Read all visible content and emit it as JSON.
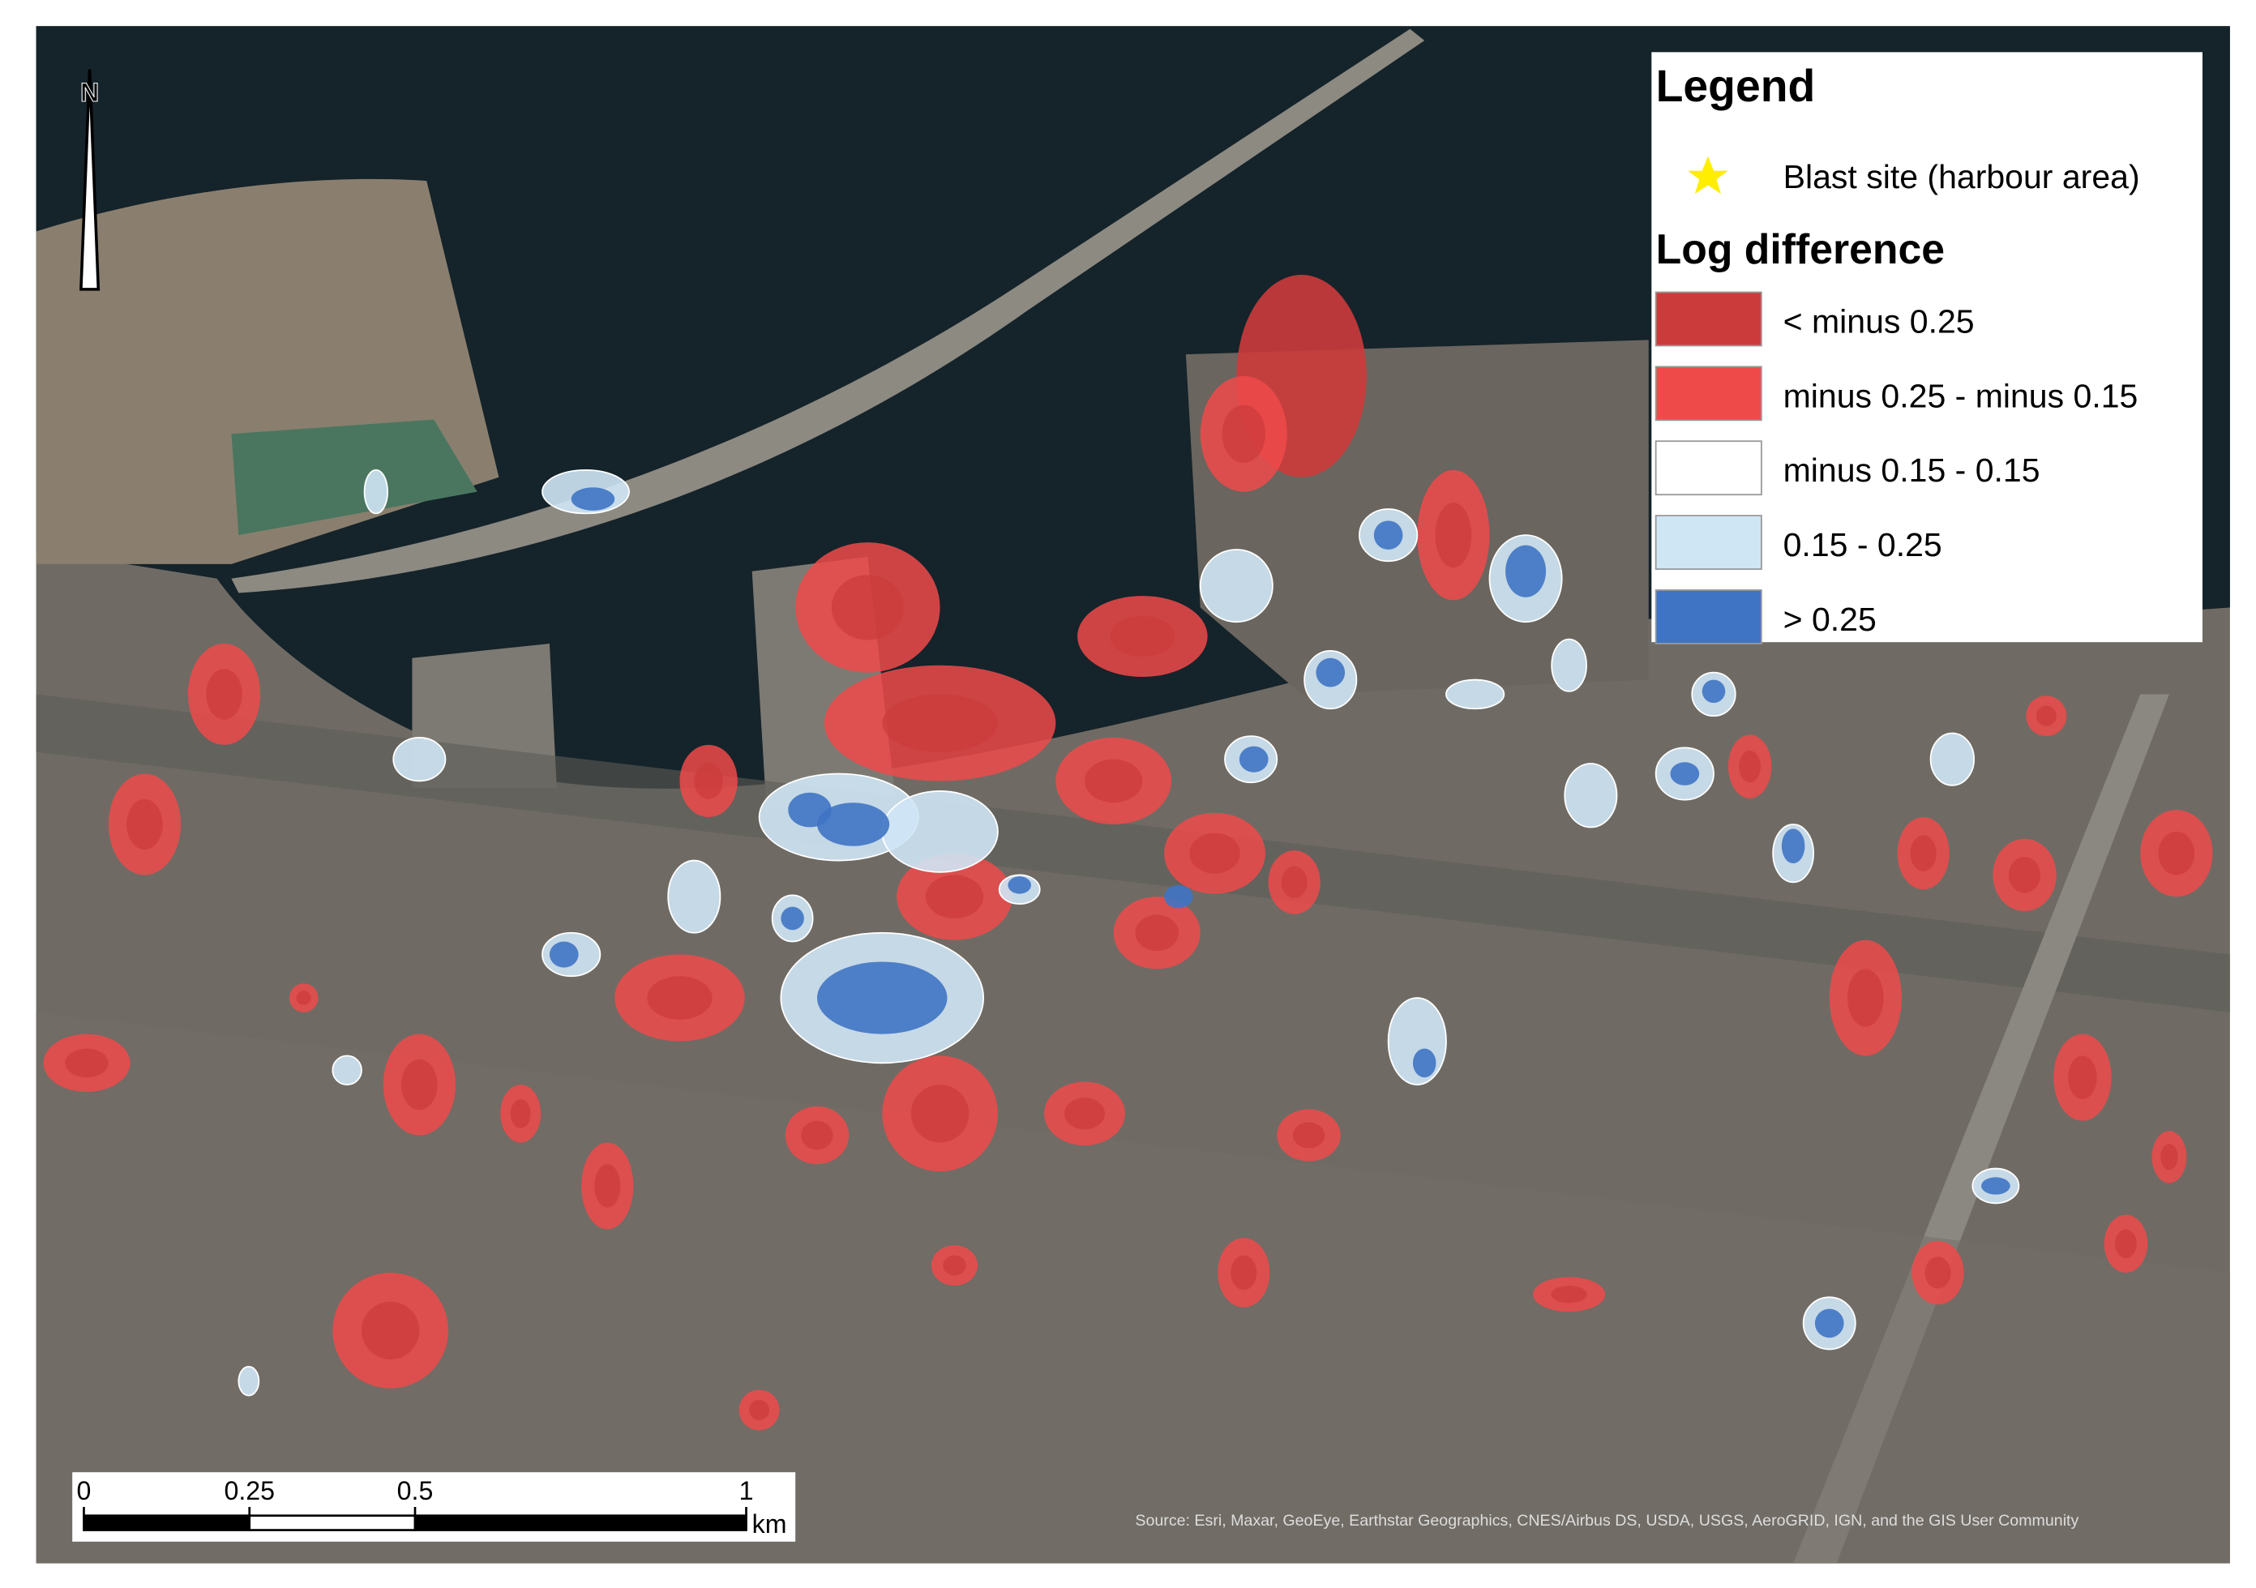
{
  "legend": {
    "title": "Legend",
    "blast_site": "Blast site (harbour area)",
    "subtitle": "Log difference",
    "classes": [
      {
        "label": "< minus 0.25",
        "color": "#cc3b3b"
      },
      {
        "label": "minus 0.25 - minus 0.15",
        "color": "#ee4a4a"
      },
      {
        "label": "minus 0.15 - 0.15",
        "color": "#ffffff"
      },
      {
        "label": "0.15 - 0.25",
        "color": "#cfe6f5"
      },
      {
        "label": "> 0.25",
        "color": "#3f74c4"
      }
    ]
  },
  "north_arrow": "N",
  "scale_bar": {
    "ticks": [
      {
        "value": 0,
        "label": "0"
      },
      {
        "value": 0.25,
        "label": "0.25"
      },
      {
        "value": 0.5,
        "label": "0.5"
      },
      {
        "value": 1,
        "label": "1"
      }
    ],
    "unit": "km"
  },
  "attribution": "Source: Esri, Maxar, GeoEye, Earthstar Geographics, CNES/Airbus DS, USDA, USGS, AeroGRID, IGN, and the GIS User Community"
}
